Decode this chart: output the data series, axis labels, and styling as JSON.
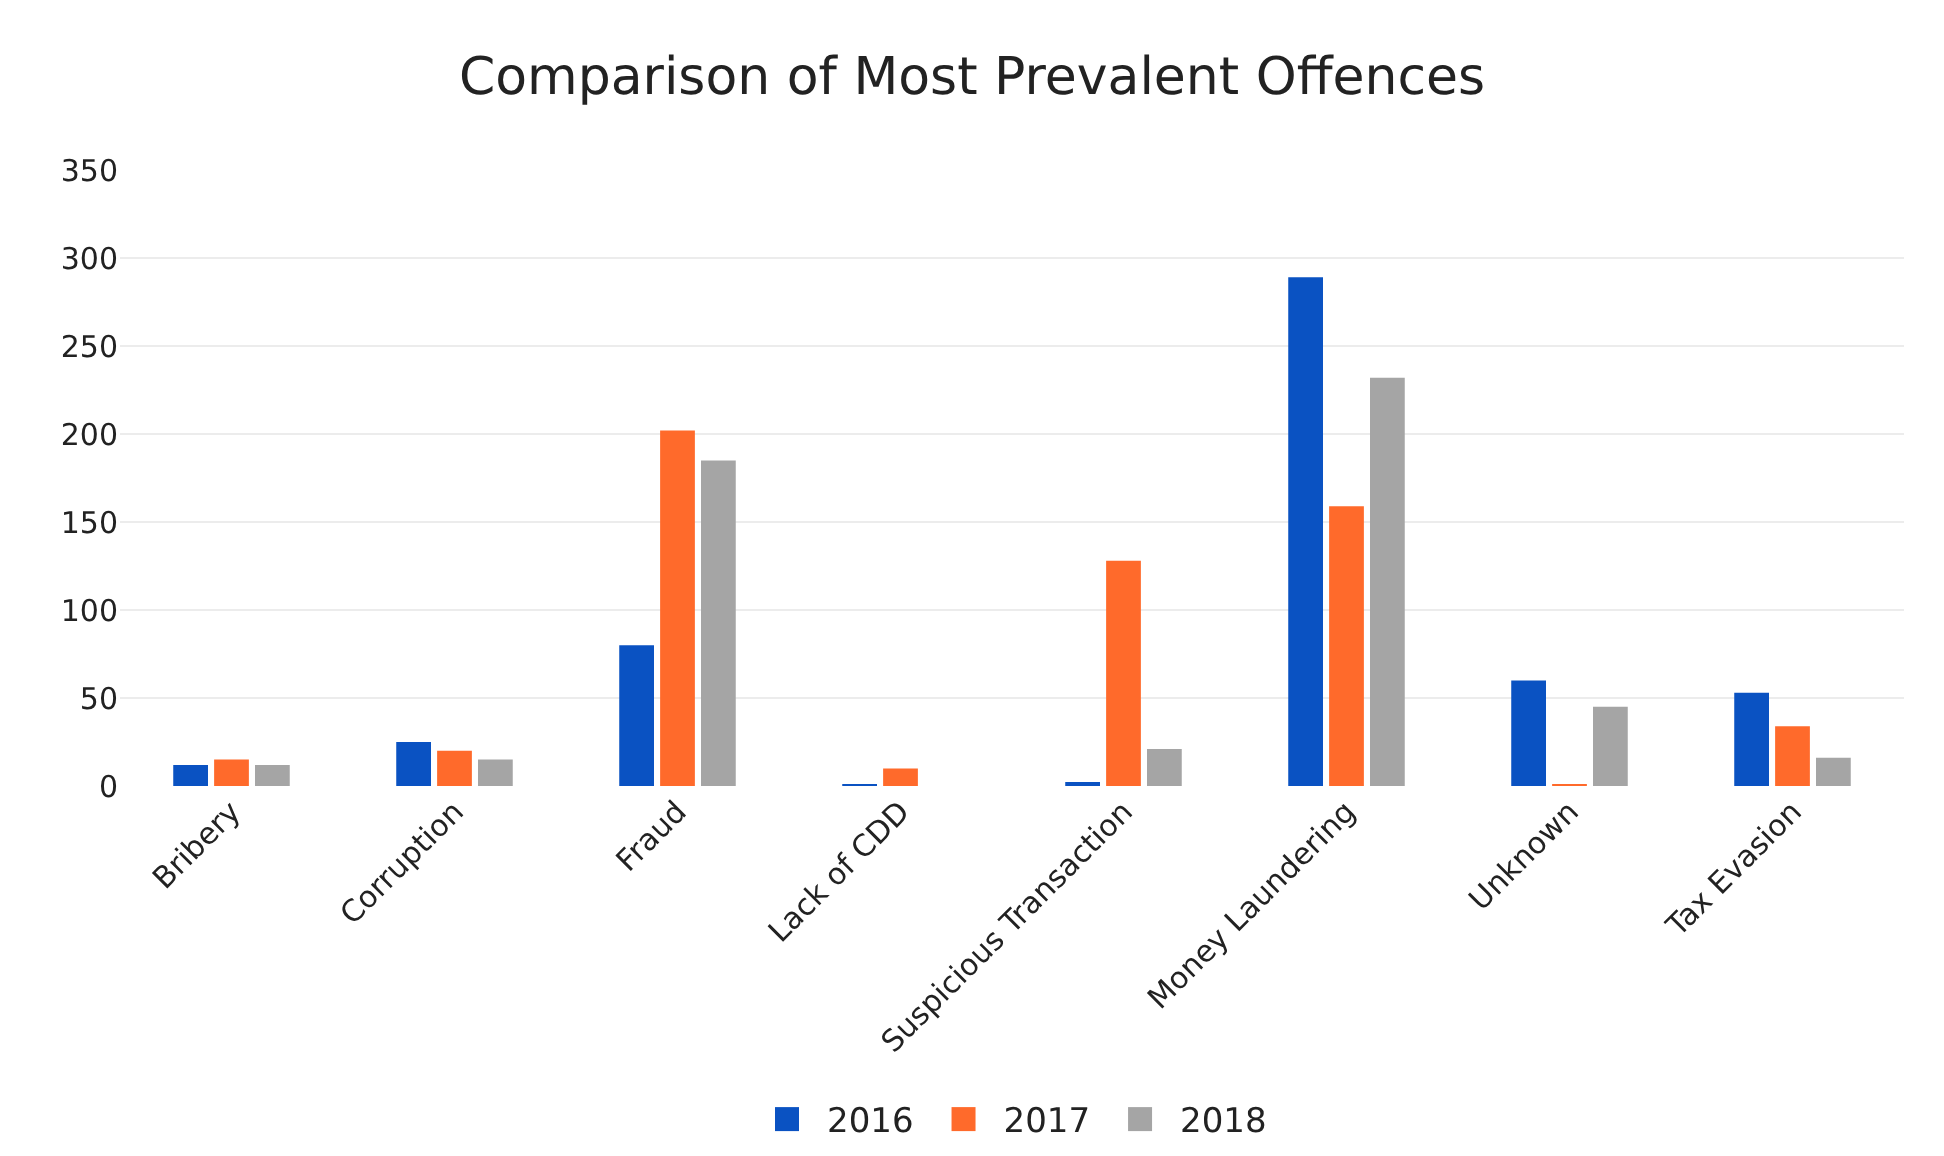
{
  "chart_data": {
    "type": "bar",
    "title": "Comparison of Most Prevalent Offences",
    "categories": [
      "Bribery",
      "Corruption",
      "Fraud",
      "Lack of CDD",
      "Suspicious Transaction",
      "Money Laundering",
      "Unknown",
      "Tax Evasion"
    ],
    "series": [
      {
        "name": "2016",
        "color": "#0a52c2",
        "values": [
          12,
          25,
          80,
          1,
          2,
          289,
          60,
          53
        ]
      },
      {
        "name": "2017",
        "color": "#ff6a2b",
        "values": [
          15,
          20,
          202,
          10,
          128,
          159,
          1,
          34
        ]
      },
      {
        "name": "2018",
        "color": "#a5a5a5",
        "values": [
          12,
          15,
          185,
          0,
          21,
          232,
          45,
          16
        ]
      }
    ],
    "ylim": [
      0,
      350
    ],
    "yticks": [
      0,
      50,
      100,
      150,
      200,
      250,
      300,
      350
    ],
    "grid": "y",
    "legend": "bottom"
  }
}
